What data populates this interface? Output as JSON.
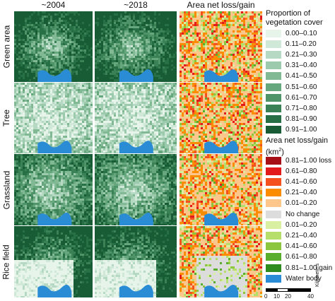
{
  "columns": [
    "~2004",
    "~2018",
    "Area net loss/gain"
  ],
  "rows": [
    "Green area",
    "Tree",
    "Grassland",
    "Rice field"
  ],
  "legend_vegetation": {
    "title_line1": "Proportion of",
    "title_line2": "vegetation cover",
    "items": [
      {
        "label": "0.00–0.10",
        "color": "#e6f4ea"
      },
      {
        "label": "0.11–0.20",
        "color": "#cfe8d8"
      },
      {
        "label": "0.21–0.30",
        "color": "#b5d9c2"
      },
      {
        "label": "0.31–0.40",
        "color": "#9bcaac"
      },
      {
        "label": "0.41–0.50",
        "color": "#80b994"
      },
      {
        "label": "0.51–0.60",
        "color": "#66a77d"
      },
      {
        "label": "0.61–0.70",
        "color": "#4e9468"
      },
      {
        "label": "0.71–0.80",
        "color": "#3a8256"
      },
      {
        "label": "0.81–0.90",
        "color": "#276f45"
      },
      {
        "label": "0.91–1.00",
        "color": "#175c35"
      }
    ]
  },
  "legend_change": {
    "title_line1": "Area net loss/gain",
    "title_line2": "(km",
    "title_sup": "2",
    "title_end": ")",
    "items": [
      {
        "label": "0.81–1.00 loss",
        "color": "#a50f15"
      },
      {
        "label": "0.61–0.80",
        "color": "#e31a1c"
      },
      {
        "label": "0.41–0.60",
        "color": "#f4511e"
      },
      {
        "label": "0.21–0.40",
        "color": "#fb8c00"
      },
      {
        "label": "0.01–0.20",
        "color": "#fdc68a"
      },
      {
        "label": "No change",
        "color": "#dcdcdc"
      },
      {
        "label": "0.01–0.20",
        "color": "#d9f0a3"
      },
      {
        "label": "0.21–0.40",
        "color": "#b5de6a"
      },
      {
        "label": "0.41–0.60",
        "color": "#8cc63f"
      },
      {
        "label": "0.61–0.80",
        "color": "#5aae2e"
      },
      {
        "label": "0.81–1.00 gain",
        "color": "#2e8b1e"
      },
      {
        "label": "Water body",
        "color": "#2b8cd6"
      }
    ]
  },
  "scale_bar": {
    "ticks": [
      "0",
      "10",
      "20",
      "40"
    ],
    "unit": "Kilometers"
  }
}
